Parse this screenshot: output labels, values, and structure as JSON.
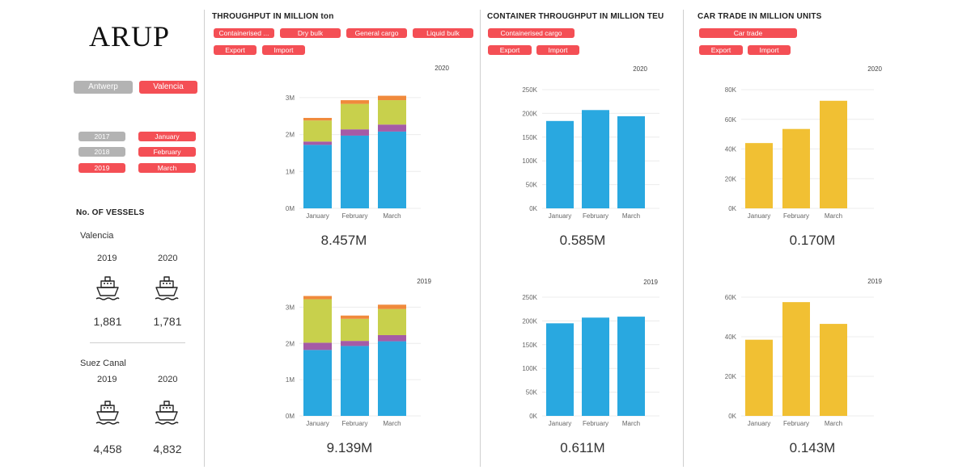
{
  "logo": "ARUP",
  "ports": [
    {
      "label": "Antwerp",
      "selected": false
    },
    {
      "label": "Valencia",
      "selected": true
    }
  ],
  "years": [
    {
      "label": "2017",
      "selected": false
    },
    {
      "label": "2018",
      "selected": false
    },
    {
      "label": "2019",
      "selected": true
    }
  ],
  "months": [
    "January",
    "February",
    "March"
  ],
  "vessels": {
    "title": "No. OF VESSELS",
    "groups": [
      {
        "name": "Valencia",
        "years": [
          "2019",
          "2020"
        ],
        "counts": [
          "1,881",
          "1,781"
        ]
      },
      {
        "name": "Suez Canal",
        "years": [
          "2019",
          "2020"
        ],
        "counts": [
          "4,458",
          "4,832"
        ]
      }
    ]
  },
  "sections": {
    "throughput": {
      "title": "THROUGHPUT IN MILLION ton",
      "filters": [
        "Containerised ...",
        "Dry bulk",
        "General cargo",
        "Liquid bulk"
      ],
      "flows": [
        "Export",
        "Import"
      ]
    },
    "container": {
      "title": "CONTAINER THROUGHPUT IN MILLION TEU",
      "filters": [
        "Containerised cargo"
      ],
      "flows": [
        "Export",
        "Import"
      ]
    },
    "cars": {
      "title": "CAR TRADE IN MILLION UNITS",
      "filters": [
        "Car trade"
      ],
      "flows": [
        "Export",
        "Import"
      ]
    }
  },
  "colors": {
    "red": "#f44f55",
    "grey": "#b3b3b3",
    "blue": "#29a8e0",
    "olive": "#c8d04c",
    "purple": "#a55ba6",
    "orange": "#f08a3c",
    "gold": "#f1c033"
  },
  "chart_data": [
    {
      "id": "thr2020",
      "type": "bar",
      "stacked": true,
      "year_label": "2020",
      "total": "8.457M",
      "categories": [
        "January",
        "February",
        "March"
      ],
      "ylim": [
        0,
        3500000
      ],
      "ticks": [
        0,
        1000000,
        2000000,
        3000000
      ],
      "tick_labels": [
        "0M",
        "1M",
        "2M",
        "3M"
      ],
      "series": [
        {
          "color": "blue",
          "values": [
            1720000,
            1970000,
            2080000
          ]
        },
        {
          "color": "purple",
          "values": [
            90000,
            170000,
            190000
          ]
        },
        {
          "color": "olive",
          "values": [
            570000,
            690000,
            660000
          ]
        },
        {
          "color": "orange",
          "values": [
            70000,
            100000,
            120000
          ]
        }
      ]
    },
    {
      "id": "thr2019",
      "type": "bar",
      "stacked": true,
      "year_label": "2019",
      "total": "9.139M",
      "categories": [
        "January",
        "February",
        "March"
      ],
      "ylim": [
        0,
        3500000
      ],
      "ticks": [
        0,
        1000000,
        2000000,
        3000000
      ],
      "tick_labels": [
        "0M",
        "1M",
        "2M",
        "3M"
      ],
      "series": [
        {
          "color": "blue",
          "values": [
            1820000,
            1930000,
            2060000
          ]
        },
        {
          "color": "purple",
          "values": [
            200000,
            140000,
            170000
          ]
        },
        {
          "color": "olive",
          "values": [
            1200000,
            610000,
            720000
          ]
        },
        {
          "color": "orange",
          "values": [
            90000,
            90000,
            120000
          ]
        }
      ]
    },
    {
      "id": "cont2020",
      "type": "bar",
      "stacked": false,
      "year_label": "2020",
      "total": "0.585M",
      "categories": [
        "January",
        "February",
        "March"
      ],
      "ylim": [
        0,
        250000
      ],
      "ticks": [
        0,
        50000,
        100000,
        150000,
        200000,
        250000
      ],
      "tick_labels": [
        "0K",
        "50K",
        "100K",
        "150K",
        "200K",
        "250K"
      ],
      "series": [
        {
          "color": "blue",
          "values": [
            184000,
            207000,
            194000
          ]
        }
      ]
    },
    {
      "id": "cont2019",
      "type": "bar",
      "stacked": false,
      "year_label": "2019",
      "total": "0.611M",
      "categories": [
        "January",
        "February",
        "March"
      ],
      "ylim": [
        0,
        250000
      ],
      "ticks": [
        0,
        50000,
        100000,
        150000,
        200000,
        250000
      ],
      "tick_labels": [
        "0K",
        "50K",
        "100K",
        "150K",
        "200K",
        "250K"
      ],
      "series": [
        {
          "color": "blue",
          "values": [
            195000,
            207000,
            209000
          ]
        }
      ]
    },
    {
      "id": "car2020",
      "type": "bar",
      "stacked": false,
      "year_label": "2020",
      "total": "0.170M",
      "categories": [
        "January",
        "February",
        "March"
      ],
      "ylim": [
        0,
        80000
      ],
      "ticks": [
        0,
        20000,
        40000,
        60000,
        80000
      ],
      "tick_labels": [
        "0K",
        "20K",
        "40K",
        "60K",
        "80K"
      ],
      "series": [
        {
          "color": "gold",
          "values": [
            44000,
            53500,
            72500
          ]
        }
      ]
    },
    {
      "id": "car2019",
      "type": "bar",
      "stacked": false,
      "year_label": "2019",
      "total": "0.143M",
      "categories": [
        "January",
        "February",
        "March"
      ],
      "ylim": [
        0,
        60000
      ],
      "ticks": [
        0,
        20000,
        40000,
        60000
      ],
      "tick_labels": [
        "0K",
        "20K",
        "40K",
        "60K"
      ],
      "series": [
        {
          "color": "gold",
          "values": [
            38500,
            57500,
            46500
          ]
        }
      ]
    }
  ]
}
